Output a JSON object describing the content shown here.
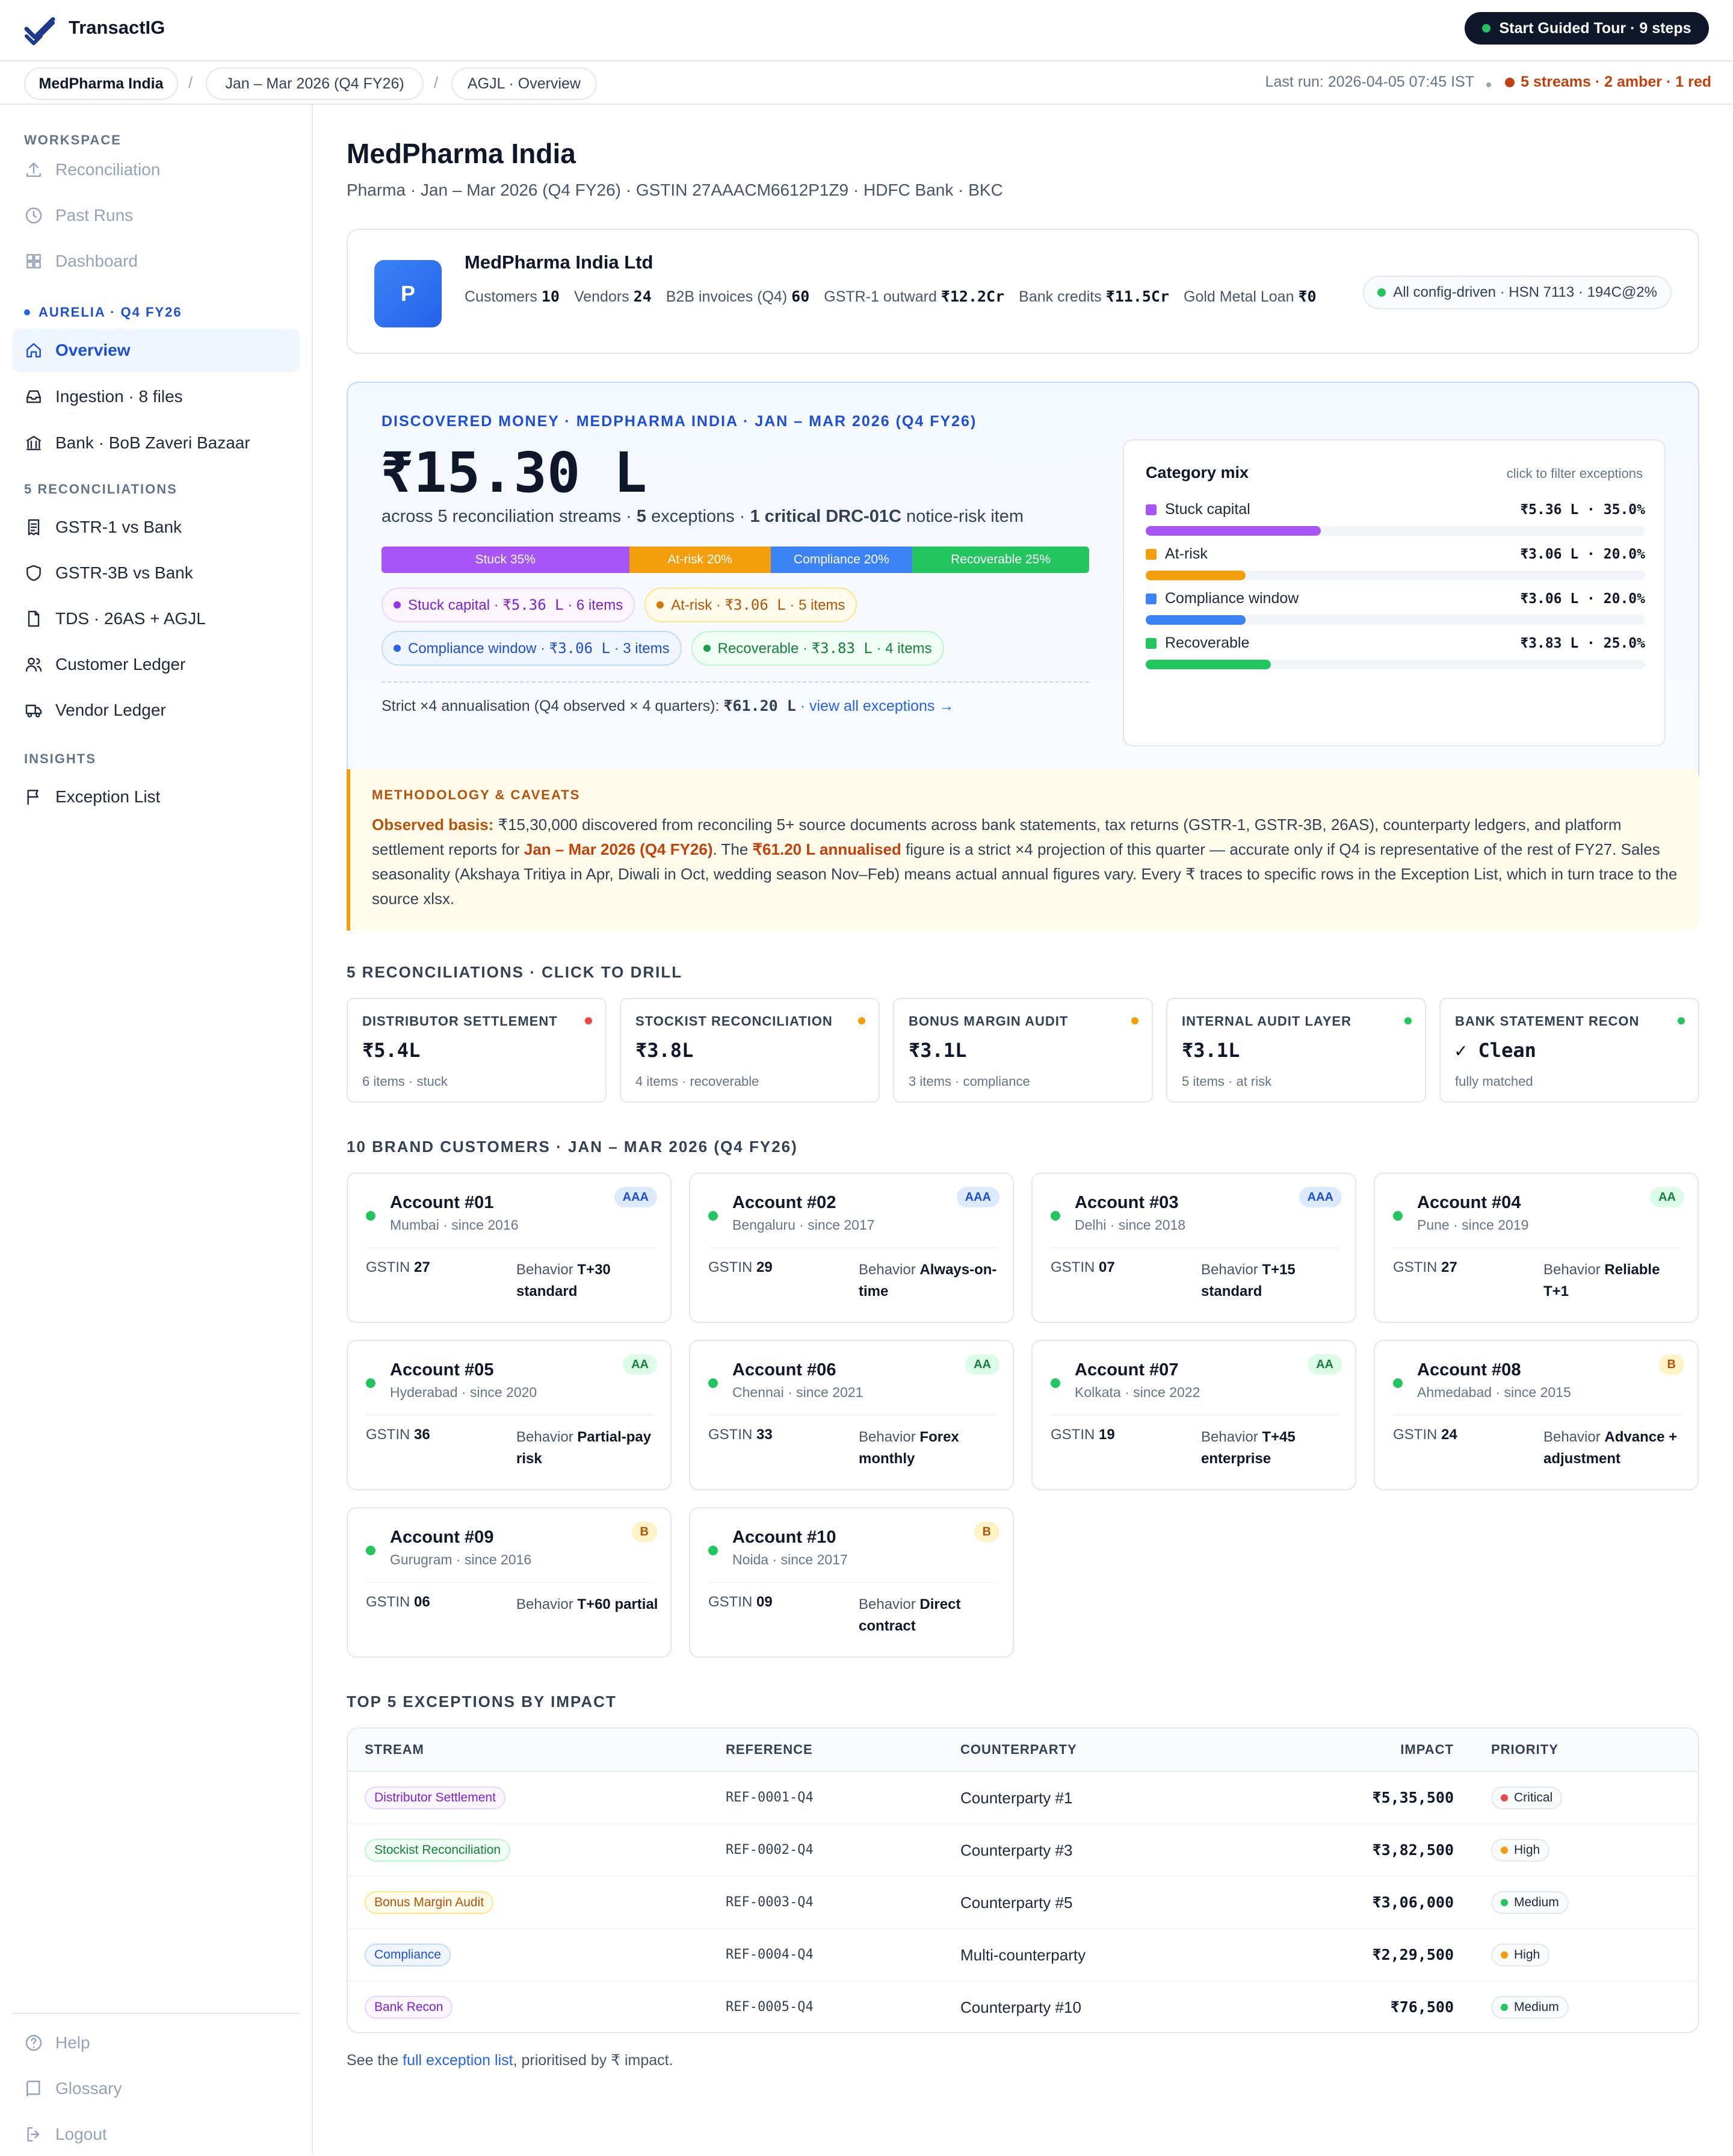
{
  "app": {
    "name": "TransactIG",
    "tour_button": "Start Guided Tour · 9 steps"
  },
  "breadcrumb": {
    "client": "MedPharma India",
    "period": "Jan – Mar 2026 (Q4 FY26)",
    "view": "AGJL · Overview"
  },
  "status": {
    "last_run": "Last run: 2026-04-05 07:45 IST",
    "summary": "5 streams · 2 amber · 1 red"
  },
  "sidebar": {
    "workspace_heading": "WORKSPACE",
    "workspace_items": [
      {
        "label": "Reconciliation",
        "icon": "upload-icon"
      },
      {
        "label": "Past Runs",
        "icon": "clock-icon"
      },
      {
        "label": "Dashboard",
        "icon": "grid-icon"
      }
    ],
    "client_heading": "AURELIA · Q4 FY26",
    "client_items": [
      {
        "label": "Overview",
        "icon": "home-icon",
        "active": true
      },
      {
        "label": "Ingestion · 8 files",
        "icon": "inbox-icon"
      },
      {
        "label": "Bank · BoB Zaveri Bazaar",
        "icon": "bank-icon"
      }
    ],
    "recon_heading": "5 RECONCILIATIONS",
    "recon_items": [
      {
        "label": "GSTR-1 vs Bank",
        "icon": "receipt-icon"
      },
      {
        "label": "GSTR-3B vs Bank",
        "icon": "shield-icon"
      },
      {
        "label": "TDS · 26AS + AGJL",
        "icon": "file-icon"
      },
      {
        "label": "Customer Ledger",
        "icon": "users-icon"
      },
      {
        "label": "Vendor Ledger",
        "icon": "truck-icon"
      }
    ],
    "insights_heading": "INSIGHTS",
    "insights_items": [
      {
        "label": "Exception List",
        "icon": "flag-icon"
      }
    ],
    "footer_items": [
      {
        "label": "Help",
        "icon": "help-icon"
      },
      {
        "label": "Glossary",
        "icon": "book-icon"
      },
      {
        "label": "Logout",
        "icon": "logout-icon"
      }
    ]
  },
  "page": {
    "title": "MedPharma India",
    "subtitle": "Pharma · Jan – Mar 2026 (Q4 FY26) · GSTIN 27AAACM6612P1Z9 · HDFC Bank · BKC"
  },
  "company": {
    "avatar": "P",
    "name": "MedPharma India Ltd",
    "stats": [
      {
        "label": "Customers",
        "value": "10"
      },
      {
        "label": "Vendors",
        "value": "24"
      },
      {
        "label": "B2B invoices (Q4)",
        "value": "60"
      },
      {
        "label": "GSTR-1 outward",
        "value": "₹12.2Cr"
      },
      {
        "label": "Bank credits",
        "value": "₹11.5Cr"
      },
      {
        "label": "Gold Metal Loan",
        "value": "₹0"
      }
    ],
    "config_badge": "All config-driven · HSN 7113 · 194C@2%"
  },
  "discovered": {
    "heading": "DISCOVERED MONEY · MEDPHARMA INDIA · JAN – MAR 2026 (Q4 FY26)",
    "amount": "₹15.30 L",
    "summary_a": "across 5 reconciliation streams · ",
    "summary_b": "5",
    "summary_c": " exceptions · ",
    "summary_d": "1 critical DRC-01C",
    "summary_e": " notice-risk item",
    "bar": [
      {
        "label": "Stuck 35%",
        "share": 35,
        "color": "#a855f7"
      },
      {
        "label": "At-risk 20%",
        "share": 20,
        "color": "#f59e0b"
      },
      {
        "label": "Compliance 20%",
        "share": 20,
        "color": "#3b82f6"
      },
      {
        "label": "Recoverable 25%",
        "share": 25,
        "color": "#22c55e"
      }
    ],
    "chips": [
      {
        "name": "Stuck capital · ",
        "amount": "₹5.36 L",
        "count": " · 6 items",
        "color": "#7e22ce",
        "bg": "#faf5ff",
        "border": "#e9d5ff",
        "dot": "#9333ea"
      },
      {
        "name": "At-risk · ",
        "amount": "₹3.06 L",
        "count": " · 5 items",
        "color": "#b45309",
        "bg": "#fffbeb",
        "border": "#fde68a",
        "dot": "#d97706"
      },
      {
        "name": "Compliance window · ",
        "amount": "₹3.06 L",
        "count": " · 3 items",
        "color": "#1d4ed8",
        "bg": "#eff6ff",
        "border": "#bfdbfe",
        "dot": "#2563eb"
      },
      {
        "name": "Recoverable · ",
        "amount": "₹3.83 L",
        "count": " · 4 items",
        "color": "#15803d",
        "bg": "#f0fdf4",
        "border": "#bbf7d0",
        "dot": "#16a34a"
      }
    ],
    "annual_text": "Strict ×4 annualisation (Q4 observed × 4 quarters): ",
    "annual_value": "₹61.20 L",
    "annual_link": " · view all exceptions →"
  },
  "category_mix": {
    "title": "Category mix",
    "hint": "click to filter exceptions",
    "rows": [
      {
        "label": "Stuck capital",
        "value": "₹5.36 L · 35.0%",
        "share": 35.0,
        "color": "#a855f7"
      },
      {
        "label": "At-risk",
        "value": "₹3.06 L · 20.0%",
        "share": 20.0,
        "color": "#f59e0b"
      },
      {
        "label": "Compliance window",
        "value": "₹3.06 L · 20.0%",
        "share": 20.0,
        "color": "#3b82f6"
      },
      {
        "label": "Recoverable",
        "value": "₹3.83 L · 25.0%",
        "share": 25.0,
        "color": "#22c55e"
      }
    ]
  },
  "methodology": {
    "heading": "METHODOLOGY & CAVEATS",
    "lead": "Observed basis:",
    "t1": " ₹15,30,000 discovered from reconciling 5+ source documents across bank statements, tax returns (GSTR-1, GSTR-3B, 26AS), counterparty ledgers, and platform settlement reports for ",
    "period": "Jan – Mar 2026 (Q4 FY26)",
    "t2": ". The ",
    "annual": "₹61.20 L annualised",
    "t3": " figure is a strict ×4 projection of this quarter — accurate only if Q4 is representative of the rest of FY27. Sales seasonality (Akshaya Tritiya in Apr, Diwali in Oct, wedding season Nov–Feb) means actual annual figures vary. Every ₹ traces to specific rows in the Exception List, which in turn trace to the source xlsx."
  },
  "recons": {
    "heading": "5 RECONCILIATIONS · CLICK TO DRILL",
    "items": [
      {
        "name": "DISTRIBUTOR SETTLEMENT",
        "value": "₹5.4L",
        "note": "6 items · stuck",
        "dot": "#ef4444"
      },
      {
        "name": "STOCKIST RECONCILIATION",
        "value": "₹3.8L",
        "note": "4 items · recoverable",
        "dot": "#f59e0b"
      },
      {
        "name": "BONUS MARGIN AUDIT",
        "value": "₹3.1L",
        "note": "3 items · compliance",
        "dot": "#f59e0b"
      },
      {
        "name": "INTERNAL AUDIT LAYER",
        "value": "₹3.1L",
        "note": "5 items · at risk",
        "dot": "#22c55e"
      },
      {
        "name": "BANK STATEMENT RECON",
        "value": "✓ Clean",
        "note": "fully matched",
        "dot": "#22c55e"
      }
    ]
  },
  "customers": {
    "heading": "10 BRAND CUSTOMERS · JAN – MAR 2026 (Q4 FY26)",
    "gstin_label": "GSTIN",
    "behavior_label": "Behavior",
    "items": [
      {
        "name": "Account #01",
        "loc": "Mumbai · since 2016",
        "rating": "AAA",
        "gstin": "27",
        "behavior": "T+30 standard"
      },
      {
        "name": "Account #02",
        "loc": "Bengaluru · since 2017",
        "rating": "AAA",
        "gstin": "29",
        "behavior": "Always-on-time"
      },
      {
        "name": "Account #03",
        "loc": "Delhi · since 2018",
        "rating": "AAA",
        "gstin": "07",
        "behavior": "T+15 standard"
      },
      {
        "name": "Account #04",
        "loc": "Pune · since 2019",
        "rating": "AA",
        "gstin": "27",
        "behavior": "Reliable T+1"
      },
      {
        "name": "Account #05",
        "loc": "Hyderabad · since 2020",
        "rating": "AA",
        "gstin": "36",
        "behavior": "Partial-pay risk"
      },
      {
        "name": "Account #06",
        "loc": "Chennai · since 2021",
        "rating": "AA",
        "gstin": "33",
        "behavior": "Forex monthly"
      },
      {
        "name": "Account #07",
        "loc": "Kolkata · since 2022",
        "rating": "AA",
        "gstin": "19",
        "behavior": "T+45 enterprise"
      },
      {
        "name": "Account #08",
        "loc": "Ahmedabad · since 2015",
        "rating": "B",
        "gstin": "24",
        "behavior": "Advance + adjustment"
      },
      {
        "name": "Account #09",
        "loc": "Gurugram · since 2016",
        "rating": "B",
        "gstin": "06",
        "behavior": "T+60 partial"
      },
      {
        "name": "Account #10",
        "loc": "Noida · since 2017",
        "rating": "B",
        "gstin": "09",
        "behavior": "Direct contract"
      }
    ]
  },
  "exceptions": {
    "heading": "TOP 5 EXCEPTIONS BY IMPACT",
    "columns": [
      "STREAM",
      "REFERENCE",
      "COUNTERPARTY",
      "IMPACT",
      "PRIORITY"
    ],
    "rows": [
      {
        "stream": "Distributor Settlement",
        "tone": "purple",
        "ref": "REF-0001-Q4",
        "cp": "Counterparty #1",
        "impact": "₹5,35,500",
        "priority": "Critical",
        "pdot": "#ef4444"
      },
      {
        "stream": "Stockist Reconciliation",
        "tone": "green",
        "ref": "REF-0002-Q4",
        "cp": "Counterparty #3",
        "impact": "₹3,82,500",
        "priority": "High",
        "pdot": "#f59e0b"
      },
      {
        "stream": "Bonus Margin Audit",
        "tone": "amber",
        "ref": "REF-0003-Q4",
        "cp": "Counterparty #5",
        "impact": "₹3,06,000",
        "priority": "Medium",
        "pdot": "#22c55e"
      },
      {
        "stream": "Compliance",
        "tone": "blue",
        "ref": "REF-0004-Q4",
        "cp": "Multi-counterparty",
        "impact": "₹2,29,500",
        "priority": "High",
        "pdot": "#f59e0b"
      },
      {
        "stream": "Bank Recon",
        "tone": "purple",
        "ref": "REF-0005-Q4",
        "cp": "Counterparty #10",
        "impact": "₹76,500",
        "priority": "Medium",
        "pdot": "#22c55e"
      }
    ],
    "footer_a": "See the ",
    "footer_link": "full exception list",
    "footer_b": ", prioritised by ₹ impact."
  }
}
